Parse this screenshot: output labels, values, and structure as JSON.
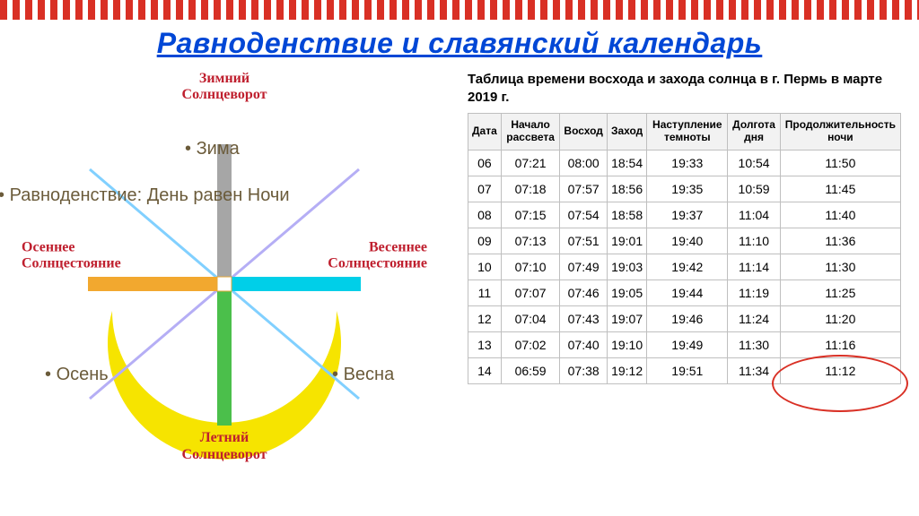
{
  "title": "Равноденствие и славянский календарь",
  "diagram": {
    "top_label": "Зимний\nСолнцеворот",
    "bottom_label": "Летний\nСолнцеворот",
    "left_label": "Осеннее\nСолнцестояние",
    "right_label": "Весеннее\nСолнцестояние",
    "season_top": "Зима",
    "season_left": "Осень",
    "season_right": "Весна",
    "subtitle": "Равноденствие: День равен Ночи",
    "diag_color1": "#81d0ff",
    "diag_color2": "#b5aef5",
    "arm_colors": {
      "top": "#a6a6a6",
      "right": "#00cfe8",
      "bottom": "#4bbf4b",
      "left": "#f2a82f"
    },
    "arc_color": "#f6e400",
    "center_fill": "#ffffff",
    "label_color": "#bf1f2e",
    "text_color": "#6b5b3a"
  },
  "table": {
    "title": "Таблица времени восхода и захода солнца в г. Пермь в марте 2019 г.",
    "columns": [
      "Дата",
      "Начало рассвета",
      "Восход",
      "Заход",
      "Наступление темноты",
      "Долгота дня",
      "Продолжительность ночи"
    ],
    "rows": [
      [
        "06",
        "07:21",
        "08:00",
        "18:54",
        "19:33",
        "10:54",
        "11:50"
      ],
      [
        "07",
        "07:18",
        "07:57",
        "18:56",
        "19:35",
        "10:59",
        "11:45"
      ],
      [
        "08",
        "07:15",
        "07:54",
        "18:58",
        "19:37",
        "11:04",
        "11:40"
      ],
      [
        "09",
        "07:13",
        "07:51",
        "19:01",
        "19:40",
        "11:10",
        "11:36"
      ],
      [
        "10",
        "07:10",
        "07:49",
        "19:03",
        "19:42",
        "11:14",
        "11:30"
      ],
      [
        "11",
        "07:07",
        "07:46",
        "19:05",
        "19:44",
        "11:19",
        "11:25"
      ],
      [
        "12",
        "07:04",
        "07:43",
        "19:07",
        "19:46",
        "11:24",
        "11:20"
      ],
      [
        "13",
        "07:02",
        "07:40",
        "19:10",
        "19:49",
        "11:30",
        "11:16"
      ],
      [
        "14",
        "06:59",
        "07:38",
        "19:12",
        "19:51",
        "11:34",
        "11:12"
      ]
    ],
    "highlight_row_range": [
      5,
      6
    ],
    "highlight_cols": [
      5,
      6
    ]
  }
}
